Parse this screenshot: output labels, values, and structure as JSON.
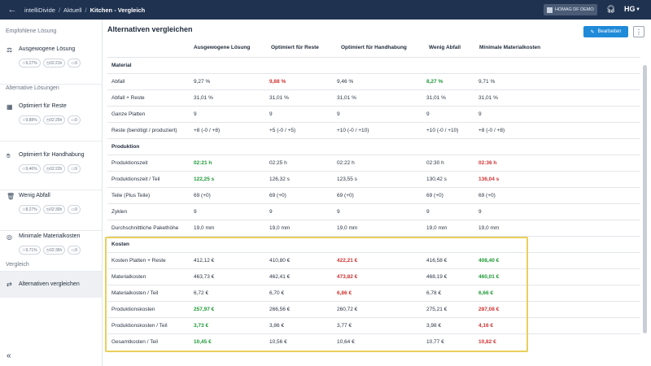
{
  "topbar": {
    "breadcrumbs": [
      "intelliDivide",
      "Aktuell",
      "Kitchen - Vergleich"
    ],
    "company": "HOMAG DF DEMO",
    "brand": "HG"
  },
  "sidebar": {
    "recommended_title": "Empfohlene Lösung",
    "alternatives_title": "Alternative Lösungen",
    "compare_title": "Vergleich",
    "items": [
      {
        "label": "Ausgewogene Lösung",
        "waste": "9,27%",
        "time": "02:21h",
        "count": "9"
      },
      {
        "label": "Optimiert für Reste",
        "waste": "9,88%",
        "time": "02:25h",
        "count": "9"
      },
      {
        "label": "Optimiert für Handhabung",
        "waste": "9,46%",
        "time": "02:22h",
        "count": "9"
      },
      {
        "label": "Wenig Abfall",
        "waste": "8,27%",
        "time": "02:30h",
        "count": "9"
      },
      {
        "label": "Minimale Materialkosten",
        "waste": "9,71%",
        "time": "02:36h",
        "count": "9"
      }
    ],
    "compare_item": "Alternativen vergleichen"
  },
  "main": {
    "title": "Alternativen vergleichen",
    "edit_label": "Bearbeiten",
    "columns": [
      "Ausgewogene Lösung",
      "Optimiert für Reste",
      "Optimiert für Handhabung",
      "Wenig Abfall",
      "Minimale Materialkosten"
    ],
    "rows": [
      {
        "type": "section",
        "label": "Material"
      },
      {
        "label": "Abfall",
        "values": [
          {
            "t": "9,27 %"
          },
          {
            "t": "9,88 %",
            "s": "bad"
          },
          {
            "t": "9,46 %"
          },
          {
            "t": "8,27 %",
            "s": "good"
          },
          {
            "t": "9,71 %"
          }
        ]
      },
      {
        "label": "Abfall + Reste",
        "values": [
          {
            "t": "31,01 %"
          },
          {
            "t": "31,01 %"
          },
          {
            "t": "31,01 %"
          },
          {
            "t": "31,01 %"
          },
          {
            "t": "31,01 %"
          }
        ]
      },
      {
        "label": "Ganze Platten",
        "values": [
          {
            "t": "9"
          },
          {
            "t": "9"
          },
          {
            "t": "9"
          },
          {
            "t": "9"
          },
          {
            "t": "9"
          }
        ]
      },
      {
        "label": "Reste (benötigt / produziert)",
        "values": [
          {
            "t": "+8 (-0 / +8)"
          },
          {
            "t": "+5 (-0 / +5)"
          },
          {
            "t": "+10 (-0 / +10)"
          },
          {
            "t": "+10 (-0 / +10)"
          },
          {
            "t": "+8 (-0 / +8)"
          }
        ]
      },
      {
        "type": "section",
        "label": "Produktion"
      },
      {
        "label": "Produktionszeit",
        "values": [
          {
            "t": "02:21 h",
            "s": "good"
          },
          {
            "t": "02:25 h"
          },
          {
            "t": "02:22 h"
          },
          {
            "t": "02:30 h"
          },
          {
            "t": "02:36 h",
            "s": "bad"
          }
        ]
      },
      {
        "label": "Produktionszeit / Teil",
        "values": [
          {
            "t": "122,25 s",
            "s": "good"
          },
          {
            "t": "126,32 s"
          },
          {
            "t": "123,55 s"
          },
          {
            "t": "130,42 s"
          },
          {
            "t": "136,04 s",
            "s": "bad"
          }
        ]
      },
      {
        "label": "Teile (Plus Teile)",
        "values": [
          {
            "t": "69 (+0)"
          },
          {
            "t": "69 (+0)"
          },
          {
            "t": "69 (+0)"
          },
          {
            "t": "69 (+0)"
          },
          {
            "t": "69 (+0)"
          }
        ]
      },
      {
        "label": "Zyklen",
        "values": [
          {
            "t": "9"
          },
          {
            "t": "9"
          },
          {
            "t": "9"
          },
          {
            "t": "9"
          },
          {
            "t": "9"
          }
        ]
      },
      {
        "label": "Durchschnittliche Pakethöhe",
        "values": [
          {
            "t": "19,0 mm"
          },
          {
            "t": "19,0 mm"
          },
          {
            "t": "19,0 mm"
          },
          {
            "t": "19,0 mm"
          },
          {
            "t": "19,0 mm"
          }
        ]
      },
      {
        "type": "section",
        "label": "Kosten"
      },
      {
        "label": "Kosten Platten + Reste",
        "values": [
          {
            "t": "412,12 €"
          },
          {
            "t": "410,80 €"
          },
          {
            "t": "422,21 €",
            "s": "bad"
          },
          {
            "t": "416,58 €"
          },
          {
            "t": "408,40 €",
            "s": "good"
          }
        ]
      },
      {
        "label": "Materialkosten",
        "values": [
          {
            "t": "463,73 €"
          },
          {
            "t": "462,41 €"
          },
          {
            "t": "473,82 €",
            "s": "bad"
          },
          {
            "t": "468,19 €"
          },
          {
            "t": "460,01 €",
            "s": "good"
          }
        ]
      },
      {
        "label": "Materialkosten / Teil",
        "values": [
          {
            "t": "6,72 €"
          },
          {
            "t": "6,70 €"
          },
          {
            "t": "6,86 €",
            "s": "bad"
          },
          {
            "t": "6,78 €"
          },
          {
            "t": "6,66 €",
            "s": "good"
          }
        ]
      },
      {
        "label": "Produktionskosten",
        "values": [
          {
            "t": "257,97 €",
            "s": "good"
          },
          {
            "t": "266,56 €"
          },
          {
            "t": "260,72 €"
          },
          {
            "t": "275,21 €"
          },
          {
            "t": "287,08 €",
            "s": "bad"
          }
        ]
      },
      {
        "label": "Produktionskosten / Teil",
        "values": [
          {
            "t": "3,73 €",
            "s": "good"
          },
          {
            "t": "3,86 €"
          },
          {
            "t": "3,77 €"
          },
          {
            "t": "3,98 €"
          },
          {
            "t": "4,16 €",
            "s": "bad"
          }
        ]
      },
      {
        "label": "Gesamtkosten / Teil",
        "values": [
          {
            "t": "10,45 €",
            "s": "good"
          },
          {
            "t": "10,56 €"
          },
          {
            "t": "10,64 €"
          },
          {
            "t": "10,77 €"
          },
          {
            "t": "10,82 €",
            "s": "bad"
          }
        ]
      }
    ]
  },
  "colors": {
    "good": "#1e9a36",
    "bad": "#d03230",
    "accent": "#1f8ad8",
    "topbar": "#1f3250",
    "highlight": "#e9cf5b"
  }
}
